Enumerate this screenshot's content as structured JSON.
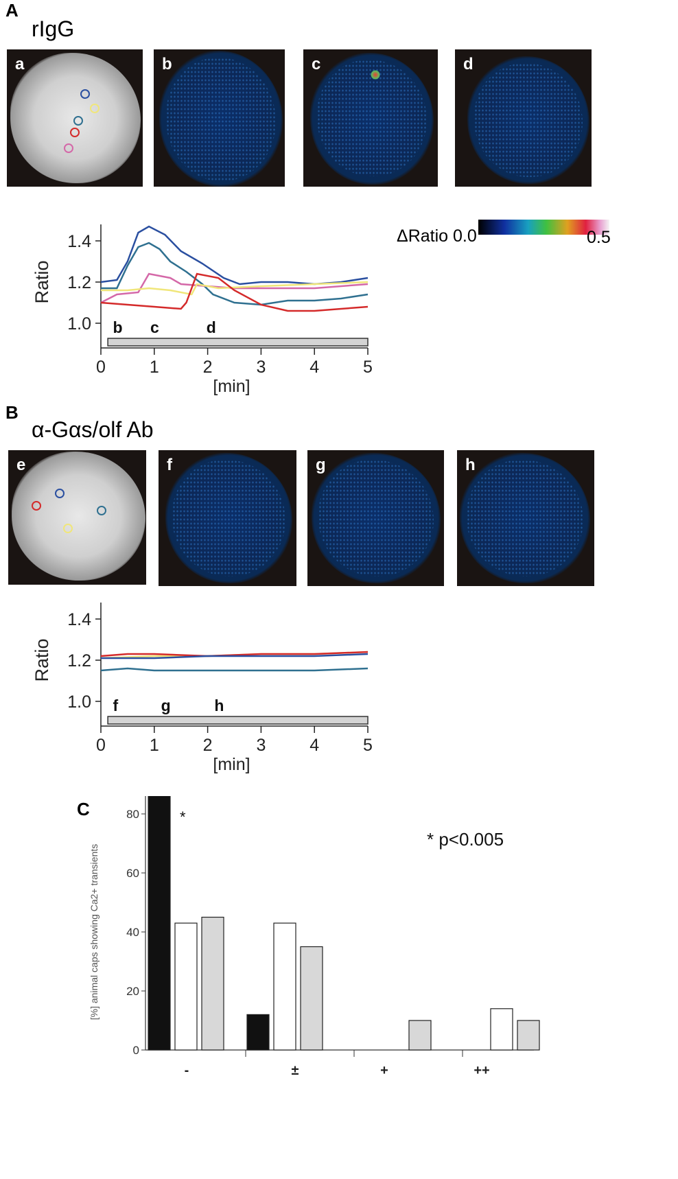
{
  "panel_A": {
    "letter": "A",
    "title": "rIgG",
    "images": [
      "a",
      "b",
      "c",
      "d"
    ]
  },
  "panel_B": {
    "letter": "B",
    "title": "α-Gαs/olf Ab",
    "images": [
      "e",
      "f",
      "g",
      "h"
    ]
  },
  "panel_C": {
    "letter": "C"
  },
  "colorbar": {
    "label": "ΔRatio 0.0",
    "max": "0.5"
  },
  "colors": {
    "blue": "#2a4fa0",
    "teal": "#2f7090",
    "pink": "#d468a8",
    "yellow": "#f0e67a",
    "red": "#d42a2a"
  },
  "chart_data": [
    {
      "type": "line",
      "id": "A",
      "ylabel": "Ratio",
      "xlabel": "[min]",
      "xlim": [
        0,
        5
      ],
      "ylim": [
        0.88,
        1.48
      ],
      "xticks": [
        "0",
        "1",
        "2",
        "3",
        "4",
        "5"
      ],
      "yticks": [
        "1.0",
        "1.2",
        "1.4"
      ],
      "stimulus_bar": [
        0.13,
        5
      ],
      "markers": [
        {
          "label": "b",
          "x": 0.2
        },
        {
          "label": "c",
          "x": 0.9
        },
        {
          "label": "d",
          "x": 1.95
        }
      ],
      "series": [
        {
          "name": "blue",
          "color": "#2a4fa0",
          "x": [
            0,
            0.3,
            0.5,
            0.7,
            0.9,
            1.2,
            1.5,
            1.9,
            2.3,
            2.6,
            3,
            3.5,
            4,
            4.5,
            5
          ],
          "y": [
            1.2,
            1.21,
            1.3,
            1.44,
            1.47,
            1.43,
            1.35,
            1.29,
            1.22,
            1.19,
            1.2,
            1.2,
            1.19,
            1.2,
            1.22
          ]
        },
        {
          "name": "teal",
          "color": "#2f7090",
          "x": [
            0,
            0.3,
            0.5,
            0.7,
            0.9,
            1.1,
            1.3,
            1.6,
            1.9,
            2.1,
            2.5,
            3,
            3.5,
            4,
            4.5,
            5
          ],
          "y": [
            1.17,
            1.17,
            1.28,
            1.37,
            1.39,
            1.36,
            1.3,
            1.25,
            1.19,
            1.14,
            1.1,
            1.09,
            1.11,
            1.11,
            1.12,
            1.14
          ]
        },
        {
          "name": "pink",
          "color": "#d468a8",
          "x": [
            0,
            0.3,
            0.7,
            0.9,
            1.3,
            1.5,
            2,
            2.5,
            3,
            4,
            5
          ],
          "y": [
            1.1,
            1.14,
            1.15,
            1.24,
            1.22,
            1.19,
            1.18,
            1.17,
            1.17,
            1.17,
            1.19
          ]
        },
        {
          "name": "yellow",
          "color": "#f0e67a",
          "x": [
            0,
            0.5,
            0.9,
            1.3,
            1.7,
            1.8,
            2.2,
            3,
            4,
            5
          ],
          "y": [
            1.16,
            1.16,
            1.17,
            1.16,
            1.14,
            1.19,
            1.17,
            1.18,
            1.19,
            1.2
          ]
        },
        {
          "name": "red",
          "color": "#d42a2a",
          "x": [
            0,
            0.5,
            1,
            1.5,
            1.6,
            1.8,
            2.2,
            2.5,
            3,
            3.5,
            4,
            4.5,
            5
          ],
          "y": [
            1.1,
            1.09,
            1.08,
            1.07,
            1.1,
            1.24,
            1.22,
            1.16,
            1.09,
            1.06,
            1.06,
            1.07,
            1.08
          ]
        }
      ]
    },
    {
      "type": "line",
      "id": "B",
      "ylabel": "Ratio",
      "xlabel": "[min]",
      "xlim": [
        0,
        5
      ],
      "ylim": [
        0.88,
        1.48
      ],
      "xticks": [
        "0",
        "1",
        "2",
        "3",
        "4",
        "5"
      ],
      "yticks": [
        "1.0",
        "1.2",
        "1.4"
      ],
      "stimulus_bar": [
        0.13,
        5
      ],
      "markers": [
        {
          "label": "f",
          "x": 0.2
        },
        {
          "label": "g",
          "x": 1.1
        },
        {
          "label": "h",
          "x": 2.1
        }
      ],
      "series": [
        {
          "name": "yellow",
          "color": "#f0e67a",
          "x": [
            0,
            1,
            2,
            3,
            4,
            5
          ],
          "y": [
            1.21,
            1.22,
            1.22,
            1.23,
            1.23,
            1.24
          ]
        },
        {
          "name": "red",
          "color": "#d42a2a",
          "x": [
            0,
            0.5,
            1,
            2,
            3,
            4,
            5
          ],
          "y": [
            1.22,
            1.23,
            1.23,
            1.22,
            1.23,
            1.23,
            1.24
          ]
        },
        {
          "name": "blue",
          "color": "#2a4fa0",
          "x": [
            0,
            1,
            2,
            3,
            4,
            5
          ],
          "y": [
            1.21,
            1.21,
            1.22,
            1.22,
            1.22,
            1.23
          ]
        },
        {
          "name": "teal",
          "color": "#2f7090",
          "x": [
            0,
            0.5,
            1,
            2,
            3,
            4,
            5
          ],
          "y": [
            1.15,
            1.16,
            1.15,
            1.15,
            1.15,
            1.15,
            1.16
          ]
        }
      ]
    },
    {
      "type": "bar",
      "id": "C",
      "ylabel": "[%] animal caps showing Ca2+ transients",
      "ylim": [
        0,
        88
      ],
      "yticks": [
        "0",
        "20",
        "40",
        "60",
        "80"
      ],
      "categories": [
        "-",
        "±",
        "+",
        "++"
      ],
      "series": [
        {
          "name": "black",
          "fill": "#111111",
          "values": [
            88,
            12,
            0,
            0
          ]
        },
        {
          "name": "white",
          "fill": "#ffffff",
          "values": [
            43,
            43,
            0,
            14
          ]
        },
        {
          "name": "gray",
          "fill": "#d8d8d8",
          "values": [
            45,
            35,
            10,
            10
          ]
        }
      ],
      "annotations": [
        "*",
        "* p<0.005"
      ]
    }
  ]
}
